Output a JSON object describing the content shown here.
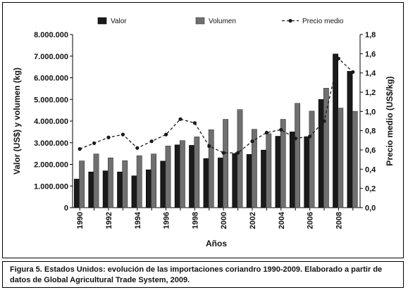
{
  "chart_data": {
    "type": "bar",
    "categories": [
      "1990",
      "1991",
      "1992",
      "1993",
      "1994",
      "1995",
      "1996",
      "1997",
      "1998",
      "1999",
      "2000",
      "2001",
      "2002",
      "2003",
      "2004",
      "2005",
      "2006",
      "2007",
      "2008",
      "2009"
    ],
    "x_tick_labels": [
      "1990",
      "1992",
      "1994",
      "1996",
      "1998",
      "2000",
      "2002",
      "2004",
      "2006",
      "2008"
    ],
    "series": [
      {
        "name": "Valor",
        "axis": "left",
        "kind": "bar",
        "color": "#1a1a1a",
        "values": [
          1320000,
          1650000,
          1700000,
          1650000,
          1470000,
          1750000,
          2150000,
          2900000,
          2880000,
          2270000,
          2300000,
          2500000,
          2460000,
          2660000,
          3300000,
          3500000,
          3280000,
          5000000,
          7100000,
          6300000
        ]
      },
      {
        "name": "Volumen",
        "axis": "left",
        "kind": "bar",
        "color": "#707070",
        "values": [
          2160000,
          2480000,
          2300000,
          2170000,
          2400000,
          2480000,
          2850000,
          3100000,
          3270000,
          3600000,
          4080000,
          4530000,
          3620000,
          3420000,
          4080000,
          4820000,
          4460000,
          5520000,
          4600000,
          4450000
        ]
      },
      {
        "name": "Precio medio",
        "axis": "right",
        "kind": "line",
        "color": "#1a1a1a",
        "values": [
          0.61,
          0.67,
          0.73,
          0.76,
          0.62,
          0.69,
          0.76,
          0.92,
          0.88,
          0.64,
          0.57,
          0.57,
          0.69,
          0.78,
          0.81,
          0.72,
          0.74,
          0.9,
          1.55,
          1.41
        ]
      }
    ],
    "ylabel": "Valor (US$) y volumen (kg)",
    "y2label": "Precio medio (US$/kg)",
    "xlabel": "Años",
    "ylim": [
      0,
      8000000
    ],
    "y2lim": [
      0,
      1.8
    ],
    "y_tick_labels": [
      "0",
      "1.000.000",
      "2.000.000",
      "3.000.000",
      "4.000.000",
      "5.000.000",
      "6.000.000",
      "7.000.000",
      "8.000.000"
    ],
    "y2_tick_labels": [
      "0,0",
      "0,2",
      "0,4",
      "0,6",
      "0,8",
      "1,0",
      "1,2",
      "1,4",
      "1,6",
      "1,8"
    ],
    "grid": false,
    "legend_position": "top"
  },
  "caption": {
    "text": "Figura 5.  Estados Unidos: evolución de las importaciones coriandro 1990-2009. Elaborado a partir de datos de Global Agricultural Trade System, 2009."
  }
}
